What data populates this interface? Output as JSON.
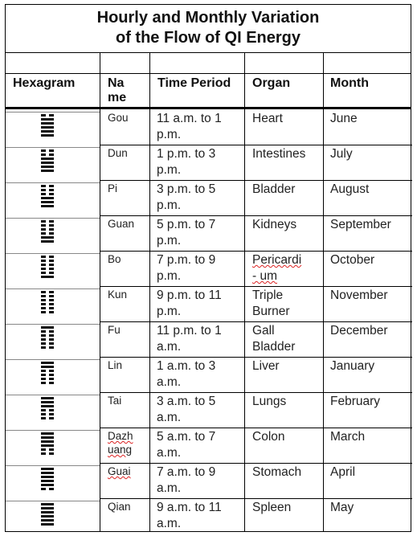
{
  "title": {
    "line1": "Hourly and Monthly Variation",
    "line2": "of the Flow of QI Energy"
  },
  "headers": {
    "hexagram": "Hexagram",
    "name": "Na\nme",
    "name_l1": "Na",
    "name_l2": "me",
    "time": "Time Period",
    "organ": "Organ",
    "month": "Month"
  },
  "rows": [
    {
      "name_l1": "Gou",
      "name_l2": "",
      "time_l1": "11 a.m. to 1",
      "time_l2": "p.m.",
      "organ_l1": "Heart",
      "organ_l2": "",
      "month": "June",
      "hexagram": [
        1,
        1,
        1,
        1,
        1,
        0
      ]
    },
    {
      "name_l1": "Dun",
      "name_l2": "",
      "time_l1": "1 p.m. to 3",
      "time_l2": "p.m.",
      "organ_l1": "Intestines",
      "organ_l2": "",
      "month": "July",
      "hexagram": [
        1,
        1,
        1,
        1,
        0,
        0
      ]
    },
    {
      "name_l1": "Pi",
      "name_l2": "",
      "time_l1": "3 p.m. to 5",
      "time_l2": "p.m.",
      "organ_l1": "Bladder",
      "organ_l2": "",
      "month": "August",
      "hexagram": [
        1,
        1,
        1,
        0,
        0,
        0
      ]
    },
    {
      "name_l1": "Guan",
      "name_l2": "",
      "time_l1": "5 p.m. to 7",
      "time_l2": "p.m.",
      "organ_l1": "Kidneys",
      "organ_l2": "",
      "month": "September",
      "hexagram": [
        1,
        1,
        0,
        0,
        0,
        0
      ]
    },
    {
      "name_l1": "Bo",
      "name_l2": "",
      "time_l1": "7 p.m. to 9",
      "time_l2": "p.m.",
      "organ_l1": "Pericardi",
      "organ_l2": "- um",
      "month": "October",
      "hexagram": [
        1,
        0,
        0,
        0,
        0,
        0
      ]
    },
    {
      "name_l1": "Kun",
      "name_l2": "",
      "time_l1": "9 p.m. to 11",
      "time_l2": "p.m.",
      "organ_l1": "Triple",
      "organ_l2": "Burner",
      "month": "November",
      "hexagram": [
        0,
        0,
        0,
        0,
        0,
        0
      ]
    },
    {
      "name_l1": "Fu",
      "name_l2": "",
      "time_l1": "11 p.m. to 1",
      "time_l2": "a.m.",
      "organ_l1": "Gall",
      "organ_l2": "Bladder",
      "month": "December",
      "hexagram": [
        0,
        0,
        0,
        0,
        0,
        1
      ]
    },
    {
      "name_l1": "Lin",
      "name_l2": "",
      "time_l1": "1 a.m. to 3",
      "time_l2": "a.m.",
      "organ_l1": "Liver",
      "organ_l2": "",
      "month": "January",
      "hexagram": [
        0,
        0,
        0,
        0,
        1,
        1
      ]
    },
    {
      "name_l1": "Tai",
      "name_l2": "",
      "time_l1": "3 a.m. to 5",
      "time_l2": "a.m.",
      "organ_l1": "Lungs",
      "organ_l2": "",
      "month": "February",
      "hexagram": [
        0,
        0,
        0,
        1,
        1,
        1
      ]
    },
    {
      "name_l1": "Dazh",
      "name_l2": "uang",
      "time_l1": "5 a.m. to 7",
      "time_l2": "a.m.",
      "organ_l1": "Colon",
      "organ_l2": "",
      "month": "March",
      "hexagram": [
        0,
        0,
        1,
        1,
        1,
        1
      ]
    },
    {
      "name_l1": "Guai",
      "name_l2": "",
      "time_l1": "7 a.m. to 9",
      "time_l2": "a.m.",
      "organ_l1": "Stomach",
      "organ_l2": "",
      "month": "April",
      "hexagram": [
        0,
        1,
        1,
        1,
        1,
        1
      ]
    },
    {
      "name_l1": "Qian",
      "name_l2": "",
      "time_l1": "9 a.m. to 11",
      "time_l2": "a.m.",
      "organ_l1": "Spleen",
      "organ_l2": "",
      "month": "May",
      "hexagram": [
        1,
        1,
        1,
        1,
        1,
        1
      ]
    }
  ]
}
